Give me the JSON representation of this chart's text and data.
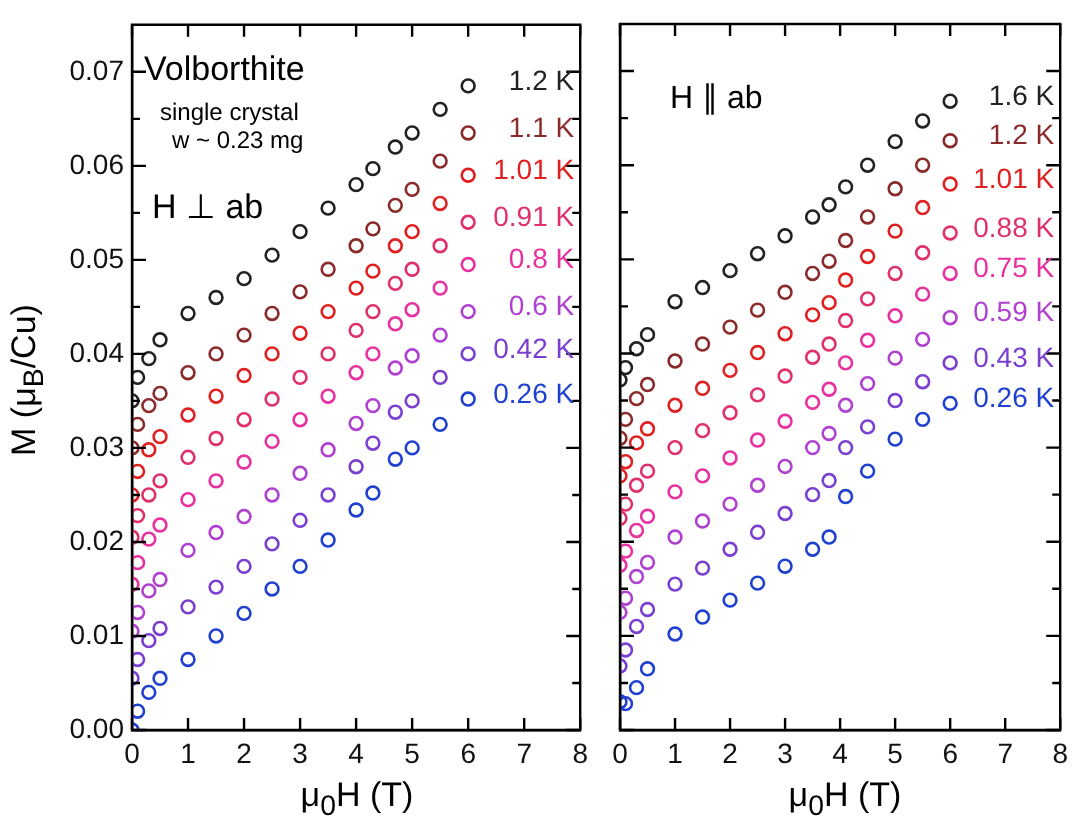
{
  "chart_data": [
    {
      "type": "scatter",
      "xlabel": "μ$_{0}$H (T)",
      "ylabel": "M (μ$_{B}$/Cu)",
      "annotations": [
        "Volborthite",
        "single crystal",
        "w ~ 0.23 mg",
        "H ⊥ ab"
      ],
      "x": [
        0,
        0.1,
        0.3,
        0.5,
        1,
        1.5,
        2,
        2.5,
        3,
        3.5,
        4,
        4.3,
        4.7,
        5,
        5.5,
        6
      ],
      "series": [
        {
          "name": "1.2 K",
          "color": "#222222",
          "values": [
            0.035,
            0.0375,
            0.0395,
            0.0415,
            0.0443,
            0.046,
            0.048,
            0.0505,
            0.053,
            0.0555,
            0.058,
            0.0597,
            0.062,
            0.0635,
            0.066,
            0.0685
          ]
        },
        {
          "name": "1.1 K",
          "color": "#8b2a2a",
          "values": [
            0.03,
            0.0325,
            0.0345,
            0.0358,
            0.038,
            0.04,
            0.042,
            0.0443,
            0.0466,
            0.049,
            0.0515,
            0.0533,
            0.0558,
            0.0575,
            0.0605,
            0.0635
          ]
        },
        {
          "name": "1.01 K",
          "color": "#e02020",
          "values": [
            0.025,
            0.0275,
            0.0298,
            0.0312,
            0.0335,
            0.0355,
            0.0377,
            0.04,
            0.0422,
            0.0445,
            0.047,
            0.0488,
            0.0515,
            0.053,
            0.056,
            0.059
          ]
        },
        {
          "name": "0.91 K",
          "color": "#e0306a",
          "values": [
            0.0205,
            0.0228,
            0.025,
            0.0265,
            0.029,
            0.031,
            0.033,
            0.0352,
            0.0375,
            0.04,
            0.0425,
            0.0445,
            0.0475,
            0.049,
            0.0515,
            0.054
          ]
        },
        {
          "name": "0.8 K",
          "color": "#e830a0",
          "values": [
            0.0155,
            0.0178,
            0.0203,
            0.0218,
            0.0245,
            0.0265,
            0.0285,
            0.0307,
            0.033,
            0.0355,
            0.038,
            0.04,
            0.0432,
            0.0447,
            0.047,
            0.0495
          ]
        },
        {
          "name": "0.6 K",
          "color": "#b040d0",
          "values": [
            0.0105,
            0.0125,
            0.0148,
            0.016,
            0.0191,
            0.021,
            0.0227,
            0.025,
            0.0273,
            0.0298,
            0.0326,
            0.0345,
            0.0385,
            0.0398,
            0.042,
            0.0445
          ]
        },
        {
          "name": "0.42 K",
          "color": "#7a3fd0",
          "values": [
            0.0055,
            0.0075,
            0.0095,
            0.0108,
            0.0131,
            0.0152,
            0.0174,
            0.0198,
            0.0223,
            0.025,
            0.028,
            0.0305,
            0.0338,
            0.035,
            0.0375,
            0.04
          ]
        },
        {
          "name": "0.26 K",
          "color": "#2040d0",
          "values": [
            0,
            0.002,
            0.004,
            0.0055,
            0.0075,
            0.01,
            0.0124,
            0.015,
            0.0174,
            0.0202,
            0.0234,
            0.0252,
            0.0288,
            0.03,
            0.0325,
            0.0352
          ]
        }
      ],
      "xlim": [
        0,
        8
      ],
      "xticks": [
        0,
        1,
        2,
        3,
        4,
        5,
        6,
        7,
        8
      ],
      "ylim": [
        0,
        0.075
      ],
      "yticks": [
        {
          "value": 0,
          "label": "0.00"
        },
        {
          "value": 0.005,
          "label": null
        },
        {
          "value": 0.01,
          "label": "0.01"
        },
        {
          "value": 0.015,
          "label": null
        },
        {
          "value": 0.02,
          "label": "0.02"
        },
        {
          "value": 0.025,
          "label": null
        },
        {
          "value": 0.03,
          "label": "0.03"
        },
        {
          "value": 0.035,
          "label": null
        },
        {
          "value": 0.04,
          "label": "0.04"
        },
        {
          "value": 0.045,
          "label": null
        },
        {
          "value": 0.05,
          "label": "0.05"
        },
        {
          "value": 0.055,
          "label": null
        },
        {
          "value": 0.06,
          "label": "0.06"
        },
        {
          "value": 0.065,
          "label": null
        },
        {
          "value": 0.07,
          "label": "0.07"
        }
      ],
      "marker": "circle",
      "grid": false,
      "legend": false
    },
    {
      "type": "scatter",
      "xlabel": "μ$_{0}$H (T)",
      "annotations": [
        "H ∥ ab"
      ],
      "x": [
        0,
        0.1,
        0.3,
        0.5,
        1,
        1.5,
        2,
        2.5,
        3,
        3.5,
        3.8,
        4.1,
        4.5,
        5,
        5.5,
        6
      ],
      "series": [
        {
          "name": "1.6 K",
          "color": "#222222",
          "values": [
            0.0372,
            0.0385,
            0.0405,
            0.042,
            0.0455,
            0.047,
            0.0488,
            0.0506,
            0.0525,
            0.0545,
            0.0558,
            0.0577,
            0.06,
            0.0625,
            0.0647,
            0.0668
          ]
        },
        {
          "name": "1.2 K",
          "color": "#8b2a2a",
          "values": [
            0.031,
            0.033,
            0.0352,
            0.0367,
            0.0392,
            0.041,
            0.0428,
            0.0446,
            0.0465,
            0.0485,
            0.0498,
            0.052,
            0.0545,
            0.0575,
            0.06,
            0.0626
          ]
        },
        {
          "name": "1.01 K",
          "color": "#e02020",
          "values": [
            0.027,
            0.0285,
            0.0305,
            0.032,
            0.0345,
            0.0363,
            0.0382,
            0.0401,
            0.0421,
            0.0441,
            0.0454,
            0.0478,
            0.0503,
            0.053,
            0.0555,
            0.058
          ]
        },
        {
          "name": "0.88 K",
          "color": "#e0306a",
          "values": [
            0.0225,
            0.024,
            0.026,
            0.0275,
            0.03,
            0.0318,
            0.0337,
            0.0356,
            0.0376,
            0.0396,
            0.041,
            0.0435,
            0.0458,
            0.0485,
            0.0507,
            0.0528
          ]
        },
        {
          "name": "0.75 K",
          "color": "#e830a0",
          "values": [
            0.0175,
            0.019,
            0.0212,
            0.0227,
            0.0253,
            0.027,
            0.0289,
            0.0308,
            0.0328,
            0.0348,
            0.0362,
            0.039,
            0.0414,
            0.044,
            0.0463,
            0.0485
          ]
        },
        {
          "name": "0.59 K",
          "color": "#b040d0",
          "values": [
            0.0125,
            0.014,
            0.0163,
            0.0178,
            0.0205,
            0.0222,
            0.024,
            0.026,
            0.028,
            0.03,
            0.0315,
            0.0345,
            0.0368,
            0.0395,
            0.0415,
            0.0438
          ]
        },
        {
          "name": "0.43 K",
          "color": "#7a3fd0",
          "values": [
            0.0068,
            0.0085,
            0.011,
            0.0128,
            0.0155,
            0.0172,
            0.0192,
            0.021,
            0.023,
            0.025,
            0.0265,
            0.03,
            0.0322,
            0.035,
            0.037,
            0.039
          ]
        },
        {
          "name": "0.26 K",
          "color": "#2040d0",
          "values": [
            0.003,
            0.0028,
            0.0045,
            0.0065,
            0.0102,
            0.012,
            0.0138,
            0.0156,
            0.0174,
            0.0192,
            0.0205,
            0.0248,
            0.0275,
            0.0309,
            0.033,
            0.0347
          ]
        }
      ],
      "xlim": [
        0,
        8
      ],
      "xticks": [
        0,
        1,
        2,
        3,
        4,
        5,
        6,
        7,
        8
      ],
      "ylim": [
        0,
        0.075
      ],
      "yticks": [
        0,
        {
          "value": 0.005,
          "label": null
        },
        0.01,
        {
          "value": 0.015,
          "label": null
        },
        0.02,
        {
          "value": 0.025,
          "label": null
        },
        0.03,
        {
          "value": 0.035,
          "label": null
        },
        0.04,
        {
          "value": 0.045,
          "label": null
        },
        0.05,
        {
          "value": 0.055,
          "label": null
        },
        0.06,
        {
          "value": 0.065,
          "label": null
        },
        0.07
      ],
      "tick_labels": "x",
      "marker": "circle",
      "grid": false,
      "legend": false
    }
  ]
}
